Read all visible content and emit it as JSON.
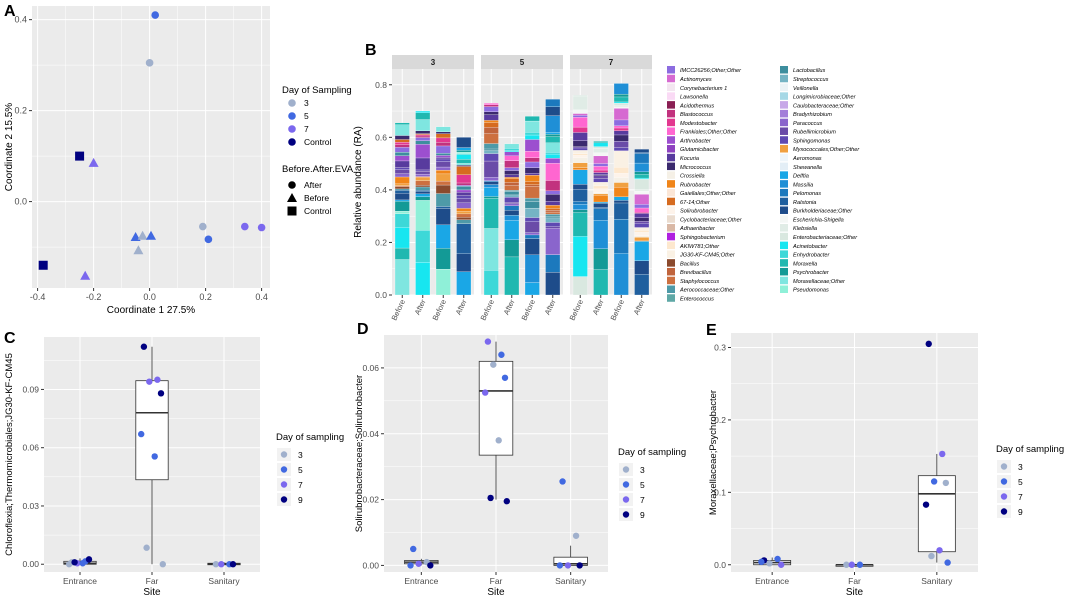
{
  "colors": {
    "panel_bg": "#ebebeb",
    "grid": "#ffffff",
    "strip": "#d9d9d9",
    "day3": "#a0b0cc",
    "day5": "#4169e1",
    "day7": "#7b68ee",
    "day9": "#000080",
    "control": "#000080"
  },
  "panels": {
    "A": {
      "letter": "A",
      "xlabel": "Coordinate 1 27.5%",
      "ylabel": "Coordinate 2 15.5%",
      "xticks": [
        "-0.4",
        "-0.2",
        "0.0",
        "0.2",
        "0.4"
      ],
      "yticks": [
        "0.4",
        "0.2",
        "0.0"
      ],
      "legend1": {
        "title": "Day of Sampling",
        "items": [
          "3",
          "5",
          "7",
          "Control"
        ]
      },
      "legend2": {
        "title": "Before.After.EVA",
        "items": [
          "After",
          "Before",
          "Control"
        ]
      }
    },
    "B": {
      "letter": "B",
      "ylabel": "Relative abundance (RA)",
      "yticks": [
        "0.8",
        "0.6",
        "0.4",
        "0.2",
        "0.0"
      ],
      "facets": [
        "3",
        "5",
        "7"
      ],
      "xcats": [
        "Before",
        "After",
        "Before",
        "After"
      ]
    },
    "C": {
      "letter": "C",
      "ylabel": "Chloroflexia;Thermomicrobiales;JG30-KF-CM45",
      "xlabel": "Site",
      "xcats": [
        "Entrance",
        "Far",
        "Sanitary"
      ],
      "yticks": [
        "0.09",
        "0.06",
        "0.03",
        "0.00"
      ],
      "legend": {
        "title": "Day of sampling",
        "items": [
          "3",
          "5",
          "7",
          "9"
        ]
      }
    },
    "D": {
      "letter": "D",
      "ylabel": "Solirubrobacteraceae;Solirubrobacter",
      "xlabel": "Site",
      "xcats": [
        "Entrance",
        "Far",
        "Sanitary"
      ],
      "yticks": [
        "0.06",
        "0.04",
        "0.02",
        "0.00"
      ],
      "legend": {
        "title": "Day of sampling",
        "items": [
          "3",
          "5",
          "7",
          "9"
        ]
      }
    },
    "E": {
      "letter": "E",
      "ylabel": "Moraxellaceae;Psychrobacter",
      "xlabel": "Site",
      "xcats": [
        "Entrance",
        "Far",
        "Sanitary"
      ],
      "yticks": [
        "0.3",
        "0.2",
        "0.1",
        "0.0"
      ],
      "legend": {
        "title": "Day of sampling",
        "items": [
          "3",
          "5",
          "7",
          "9"
        ]
      }
    }
  },
  "chart_data": [
    {
      "type": "scatter",
      "panel": "A",
      "xlabel": "Coordinate 1 27.5%",
      "ylabel": "Coordinate 2 15.5%",
      "xlim": [
        -0.42,
        0.43
      ],
      "ylim": [
        -0.19,
        0.43
      ],
      "points": [
        {
          "x": 0.02,
          "y": 0.41,
          "day": "5",
          "shape": "After"
        },
        {
          "x": 0.0,
          "y": 0.305,
          "day": "3",
          "shape": "After"
        },
        {
          "x": -0.25,
          "y": 0.1,
          "day": "Control",
          "shape": "Control"
        },
        {
          "x": -0.2,
          "y": 0.085,
          "day": "7",
          "shape": "Before"
        },
        {
          "x": 0.19,
          "y": -0.055,
          "day": "3",
          "shape": "After"
        },
        {
          "x": 0.34,
          "y": -0.055,
          "day": "7",
          "shape": "After"
        },
        {
          "x": 0.4,
          "y": -0.057,
          "day": "7",
          "shape": "After"
        },
        {
          "x": 0.21,
          "y": -0.083,
          "day": "5",
          "shape": "After"
        },
        {
          "x": -0.05,
          "y": -0.078,
          "day": "5",
          "shape": "Before"
        },
        {
          "x": -0.025,
          "y": -0.075,
          "day": "3",
          "shape": "Before"
        },
        {
          "x": 0.005,
          "y": -0.075,
          "day": "5",
          "shape": "Before"
        },
        {
          "x": -0.04,
          "y": -0.107,
          "day": "3",
          "shape": "Before"
        },
        {
          "x": -0.38,
          "y": -0.14,
          "day": "Control",
          "shape": "Control"
        },
        {
          "x": -0.23,
          "y": -0.163,
          "day": "7",
          "shape": "Before"
        }
      ]
    },
    {
      "type": "bar",
      "stacked": true,
      "panel": "B",
      "ylabel": "Relative abundance (RA)",
      "ylim": [
        0,
        0.86
      ],
      "facets": [
        "3",
        "5",
        "7"
      ],
      "categories": [
        "Before",
        "After",
        "Before",
        "After"
      ],
      "totals": [
        [
          0.655,
          0.7,
          0.64,
          0.6
        ],
        [
          0.73,
          0.575,
          0.68,
          0.745
        ],
        [
          0.76,
          0.585,
          0.805,
          0.555
        ]
      ],
      "taxa": [
        {
          "name": "IMCC26256;Other;Other",
          "color": "#8c6ce0"
        },
        {
          "name": "Actinomyces",
          "color": "#d66ad1"
        },
        {
          "name": "Corynebacterium 1",
          "color": "#f3e6f0"
        },
        {
          "name": "Lawsonella",
          "color": "#fadaf5"
        },
        {
          "name": "Acidothermus",
          "color": "#8a1f54"
        },
        {
          "name": "Blastococcus",
          "color": "#c2327e"
        },
        {
          "name": "Modestobacter",
          "color": "#e2378f"
        },
        {
          "name": "Frankiales;Other;Other",
          "color": "#ff66d0"
        },
        {
          "name": "Arthrobacter",
          "color": "#9c4fcf"
        },
        {
          "name": "Glutamicibacter",
          "color": "#8e42c0"
        },
        {
          "name": "Kocuria",
          "color": "#583b9e"
        },
        {
          "name": "Micrococcus",
          "color": "#3b2a6e"
        },
        {
          "name": "Crossiella",
          "color": "#f5f0e6"
        },
        {
          "name": "Rubrobacter",
          "color": "#f08519"
        },
        {
          "name": "Gaiellales;Other;Other",
          "color": "#fbe6d6"
        },
        {
          "name": "67-14;Other",
          "color": "#d66b1f"
        },
        {
          "name": "Solirubrobacter",
          "color": "#fdf3ea"
        },
        {
          "name": "Cyclobacteriaceae;Other",
          "color": "#eadccf"
        },
        {
          "name": "Adhaeribacter",
          "color": "#d9b8a5"
        },
        {
          "name": "Sphingobacterium",
          "color": "#b020e0"
        },
        {
          "name": "AKIW781;Other",
          "color": "#fde8ce"
        },
        {
          "name": "JG30-KF-CM45;Other",
          "color": "#faf1e4"
        },
        {
          "name": "Bacillus",
          "color": "#8b4a2d"
        },
        {
          "name": "Brevibacillus",
          "color": "#c0643c"
        },
        {
          "name": "Staphylococcus",
          "color": "#cd7040"
        },
        {
          "name": "Aerococcaceae;Other",
          "color": "#4e9aa8"
        },
        {
          "name": "Enterococcus",
          "color": "#5fa8a6"
        },
        {
          "name": "Lactobacillus",
          "color": "#3d8e9e"
        },
        {
          "name": "Streptococcus",
          "color": "#75b4c4"
        },
        {
          "name": "Veillonella",
          "color": "#ebf3f6"
        },
        {
          "name": "Longimicrobiaceae;Other",
          "color": "#a6d8e6"
        },
        {
          "name": "Caulobacteraceae;Other",
          "color": "#c7a7e8"
        },
        {
          "name": "Bradyrhizobium",
          "color": "#a37ed9"
        },
        {
          "name": "Paracoccus",
          "color": "#8a65cc"
        },
        {
          "name": "Rubellimicrobium",
          "color": "#6a4ba8"
        },
        {
          "name": "Sphingomonas",
          "color": "#5f49b2"
        },
        {
          "name": "Myxococcales;Other;Other",
          "color": "#f0a040"
        },
        {
          "name": "Aeromonas",
          "color": "#eef5fa"
        },
        {
          "name": "Shewanella",
          "color": "#e3eef6"
        },
        {
          "name": "Delftia",
          "color": "#1aa7e6"
        },
        {
          "name": "Massilia",
          "color": "#1f8fd6"
        },
        {
          "name": "Pelomonas",
          "color": "#1c79bd"
        },
        {
          "name": "Ralstonia",
          "color": "#1f5f9e"
        },
        {
          "name": "Burkholderiaceae;Other",
          "color": "#1e4c8a"
        },
        {
          "name": "Escherichia-Shigella",
          "color": "#f4f7f5"
        },
        {
          "name": "Klebsiella",
          "color": "#e0ece6"
        },
        {
          "name": "Enterobacteriaceae;Other",
          "color": "#d9e8e0"
        },
        {
          "name": "Acinetobacter",
          "color": "#17e6f0"
        },
        {
          "name": "Enhydrobacter",
          "color": "#3dd8d8"
        },
        {
          "name": "Moraxella",
          "color": "#20b8b0"
        },
        {
          "name": "Psychrobacter",
          "color": "#139a96"
        },
        {
          "name": "Moraxellaceae;Other",
          "color": "#7fe6e0"
        },
        {
          "name": "Pseudomonas",
          "color": "#8ff0d8"
        }
      ]
    },
    {
      "type": "box",
      "panel": "C",
      "xlabel": "Site",
      "ylabel": "Chloroflexia;Thermomicrobiales;JG30-KF-CM45",
      "categories": [
        "Entrance",
        "Far",
        "Sanitary"
      ],
      "ylim": [
        -0.004,
        0.117
      ],
      "boxes": [
        {
          "category": "Entrance",
          "q1": 0.0,
          "median": 0.0005,
          "q3": 0.0015,
          "lo": 0.0,
          "hi": 0.003
        },
        {
          "category": "Far",
          "q1": 0.0435,
          "median": 0.078,
          "q3": 0.0945,
          "lo": 0.0,
          "hi": 0.112
        },
        {
          "category": "Sanitary",
          "q1": 0.0,
          "median": 0.0,
          "q3": 0.0005,
          "lo": 0.0,
          "hi": 0.001
        }
      ],
      "points": [
        {
          "site": "Entrance",
          "y": 0.001,
          "day": "3"
        },
        {
          "site": "Entrance",
          "y": 0.0015,
          "day": "5"
        },
        {
          "site": "Entrance",
          "y": 0.0005,
          "day": "7"
        },
        {
          "site": "Entrance",
          "y": 0.0025,
          "day": "9"
        },
        {
          "site": "Entrance",
          "y": 0.0,
          "day": "3"
        },
        {
          "site": "Entrance",
          "y": 0.0005,
          "day": "5"
        },
        {
          "site": "Entrance",
          "y": 0.001,
          "day": "9"
        },
        {
          "site": "Far",
          "y": 0.112,
          "day": "9"
        },
        {
          "site": "Far",
          "y": 0.095,
          "day": "7"
        },
        {
          "site": "Far",
          "y": 0.094,
          "day": "7"
        },
        {
          "site": "Far",
          "y": 0.088,
          "day": "9"
        },
        {
          "site": "Far",
          "y": 0.067,
          "day": "5"
        },
        {
          "site": "Far",
          "y": 0.0555,
          "day": "5"
        },
        {
          "site": "Far",
          "y": 0.0085,
          "day": "3"
        },
        {
          "site": "Far",
          "y": 0.0,
          "day": "3"
        },
        {
          "site": "Sanitary",
          "y": 0.0,
          "day": "3"
        },
        {
          "site": "Sanitary",
          "y": 0.0,
          "day": "5"
        },
        {
          "site": "Sanitary",
          "y": 0.0,
          "day": "7"
        },
        {
          "site": "Sanitary",
          "y": 0.0,
          "day": "9"
        }
      ]
    },
    {
      "type": "box",
      "panel": "D",
      "xlabel": "Site",
      "ylabel": "Solirubrobacteraceae;Solirubrobacter",
      "categories": [
        "Entrance",
        "Far",
        "Sanitary"
      ],
      "ylim": [
        -0.002,
        0.07
      ],
      "boxes": [
        {
          "category": "Entrance",
          "q1": 0.0005,
          "median": 0.001,
          "q3": 0.0015,
          "lo": 0.0,
          "hi": 0.002
        },
        {
          "category": "Far",
          "q1": 0.0335,
          "median": 0.053,
          "q3": 0.062,
          "lo": 0.02,
          "hi": 0.068
        },
        {
          "category": "Sanitary",
          "q1": 0.0,
          "median": 0.0005,
          "q3": 0.0025,
          "lo": 0.0,
          "hi": 0.006
        }
      ],
      "points": [
        {
          "site": "Entrance",
          "y": 0.005,
          "day": "5"
        },
        {
          "site": "Entrance",
          "y": 0.001,
          "day": "3"
        },
        {
          "site": "Entrance",
          "y": 0.0005,
          "day": "7"
        },
        {
          "site": "Entrance",
          "y": 0.0,
          "day": "9"
        },
        {
          "site": "Entrance",
          "y": 0.0,
          "day": "5"
        },
        {
          "site": "Far",
          "y": 0.068,
          "day": "7"
        },
        {
          "site": "Far",
          "y": 0.064,
          "day": "5"
        },
        {
          "site": "Far",
          "y": 0.061,
          "day": "3"
        },
        {
          "site": "Far",
          "y": 0.057,
          "day": "5"
        },
        {
          "site": "Far",
          "y": 0.0525,
          "day": "7"
        },
        {
          "site": "Far",
          "y": 0.038,
          "day": "3"
        },
        {
          "site": "Far",
          "y": 0.0205,
          "day": "9"
        },
        {
          "site": "Far",
          "y": 0.0195,
          "day": "9"
        },
        {
          "site": "Sanitary",
          "y": 0.0255,
          "day": "5"
        },
        {
          "site": "Sanitary",
          "y": 0.009,
          "day": "3"
        },
        {
          "site": "Sanitary",
          "y": 0.0,
          "day": "7"
        },
        {
          "site": "Sanitary",
          "y": 0.0,
          "day": "9"
        },
        {
          "site": "Sanitary",
          "y": 0.0,
          "day": "5"
        }
      ]
    },
    {
      "type": "box",
      "panel": "E",
      "xlabel": "Site",
      "ylabel": "Moraxellaceae;Psychrobacter",
      "categories": [
        "Entrance",
        "Far",
        "Sanitary"
      ],
      "ylim": [
        -0.01,
        0.32
      ],
      "boxes": [
        {
          "category": "Entrance",
          "q1": 0.0,
          "median": 0.003,
          "q3": 0.006,
          "lo": 0.0,
          "hi": 0.01
        },
        {
          "category": "Far",
          "q1": 0.0,
          "median": 0.0,
          "q3": 0.0,
          "lo": 0.0,
          "hi": 0.0
        },
        {
          "category": "Sanitary",
          "q1": 0.018,
          "median": 0.098,
          "q3": 0.123,
          "lo": 0.003,
          "hi": 0.153
        }
      ],
      "points": [
        {
          "site": "Entrance",
          "y": 0.006,
          "day": "9"
        },
        {
          "site": "Entrance",
          "y": 0.008,
          "day": "5"
        },
        {
          "site": "Entrance",
          "y": 0.002,
          "day": "3"
        },
        {
          "site": "Entrance",
          "y": 0.0,
          "day": "7"
        },
        {
          "site": "Entrance",
          "y": 0.004,
          "day": "5"
        },
        {
          "site": "Far",
          "y": 0.0,
          "day": "3"
        },
        {
          "site": "Far",
          "y": 0.0,
          "day": "5"
        },
        {
          "site": "Far",
          "y": 0.0,
          "day": "7"
        },
        {
          "site": "Sanitary",
          "y": 0.305,
          "day": "9"
        },
        {
          "site": "Sanitary",
          "y": 0.153,
          "day": "7"
        },
        {
          "site": "Sanitary",
          "y": 0.115,
          "day": "5"
        },
        {
          "site": "Sanitary",
          "y": 0.113,
          "day": "3"
        },
        {
          "site": "Sanitary",
          "y": 0.083,
          "day": "9"
        },
        {
          "site": "Sanitary",
          "y": 0.02,
          "day": "7"
        },
        {
          "site": "Sanitary",
          "y": 0.012,
          "day": "3"
        },
        {
          "site": "Sanitary",
          "y": 0.003,
          "day": "5"
        }
      ]
    }
  ]
}
